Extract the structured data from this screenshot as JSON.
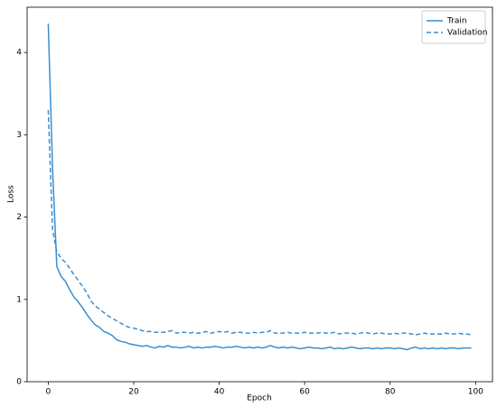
{
  "chart_data": {
    "type": "line",
    "x_label": "Epoch",
    "y_label": "Loss",
    "x": [
      0,
      1,
      2,
      3,
      4,
      5,
      6,
      7,
      8,
      9,
      10,
      11,
      12,
      13,
      14,
      15,
      16,
      17,
      18,
      19,
      20,
      21,
      22,
      23,
      24,
      25,
      26,
      27,
      28,
      29,
      30,
      31,
      32,
      33,
      34,
      35,
      36,
      37,
      38,
      39,
      40,
      41,
      42,
      43,
      44,
      45,
      46,
      47,
      48,
      49,
      50,
      51,
      52,
      53,
      54,
      55,
      56,
      57,
      58,
      59,
      60,
      61,
      62,
      63,
      64,
      65,
      66,
      67,
      68,
      69,
      70,
      71,
      72,
      73,
      74,
      75,
      76,
      77,
      78,
      79,
      80,
      81,
      82,
      83,
      84,
      85,
      86,
      87,
      88,
      89,
      90,
      91,
      92,
      93,
      94,
      95,
      96,
      97,
      98,
      99
    ],
    "series": [
      {
        "name": "Train",
        "color": "#3a8fd0",
        "linestyle": "solid",
        "values": [
          4.35,
          2.6,
          1.4,
          1.28,
          1.22,
          1.12,
          1.03,
          0.97,
          0.9,
          0.82,
          0.75,
          0.69,
          0.66,
          0.61,
          0.59,
          0.56,
          0.51,
          0.49,
          0.48,
          0.46,
          0.45,
          0.44,
          0.43,
          0.44,
          0.42,
          0.41,
          0.43,
          0.42,
          0.44,
          0.42,
          0.42,
          0.41,
          0.42,
          0.43,
          0.41,
          0.42,
          0.41,
          0.42,
          0.42,
          0.43,
          0.42,
          0.41,
          0.42,
          0.42,
          0.43,
          0.42,
          0.41,
          0.42,
          0.41,
          0.42,
          0.41,
          0.42,
          0.44,
          0.42,
          0.41,
          0.42,
          0.41,
          0.42,
          0.41,
          0.4,
          0.41,
          0.42,
          0.41,
          0.41,
          0.4,
          0.41,
          0.42,
          0.4,
          0.41,
          0.4,
          0.41,
          0.42,
          0.41,
          0.4,
          0.41,
          0.41,
          0.4,
          0.41,
          0.4,
          0.41,
          0.41,
          0.4,
          0.41,
          0.4,
          0.39,
          0.41,
          0.42,
          0.4,
          0.41,
          0.4,
          0.41,
          0.4,
          0.41,
          0.4,
          0.41,
          0.41,
          0.4,
          0.41,
          0.41,
          0.41
        ]
      },
      {
        "name": "Validation",
        "color": "#3a8fd0",
        "linestyle": "dashed",
        "values": [
          3.3,
          1.85,
          1.58,
          1.5,
          1.45,
          1.38,
          1.3,
          1.23,
          1.16,
          1.08,
          0.98,
          0.92,
          0.88,
          0.84,
          0.8,
          0.77,
          0.74,
          0.71,
          0.68,
          0.66,
          0.65,
          0.64,
          0.62,
          0.61,
          0.61,
          0.6,
          0.6,
          0.6,
          0.61,
          0.62,
          0.59,
          0.6,
          0.6,
          0.59,
          0.6,
          0.59,
          0.6,
          0.61,
          0.59,
          0.6,
          0.61,
          0.6,
          0.61,
          0.59,
          0.6,
          0.6,
          0.59,
          0.59,
          0.6,
          0.59,
          0.6,
          0.6,
          0.62,
          0.59,
          0.59,
          0.59,
          0.6,
          0.59,
          0.59,
          0.59,
          0.6,
          0.59,
          0.59,
          0.59,
          0.6,
          0.59,
          0.59,
          0.6,
          0.58,
          0.59,
          0.59,
          0.59,
          0.58,
          0.59,
          0.6,
          0.59,
          0.58,
          0.59,
          0.59,
          0.58,
          0.58,
          0.59,
          0.58,
          0.59,
          0.59,
          0.58,
          0.57,
          0.58,
          0.59,
          0.58,
          0.58,
          0.58,
          0.58,
          0.59,
          0.58,
          0.58,
          0.59,
          0.58,
          0.58,
          0.57
        ]
      }
    ],
    "xlim": [
      -4.95,
      103.95
    ],
    "ylim": [
      0,
      4.55
    ],
    "xticks": [
      0,
      20,
      40,
      60,
      80,
      100
    ],
    "yticks": [
      0,
      1,
      2,
      3,
      4
    ],
    "legend": "upper right"
  }
}
